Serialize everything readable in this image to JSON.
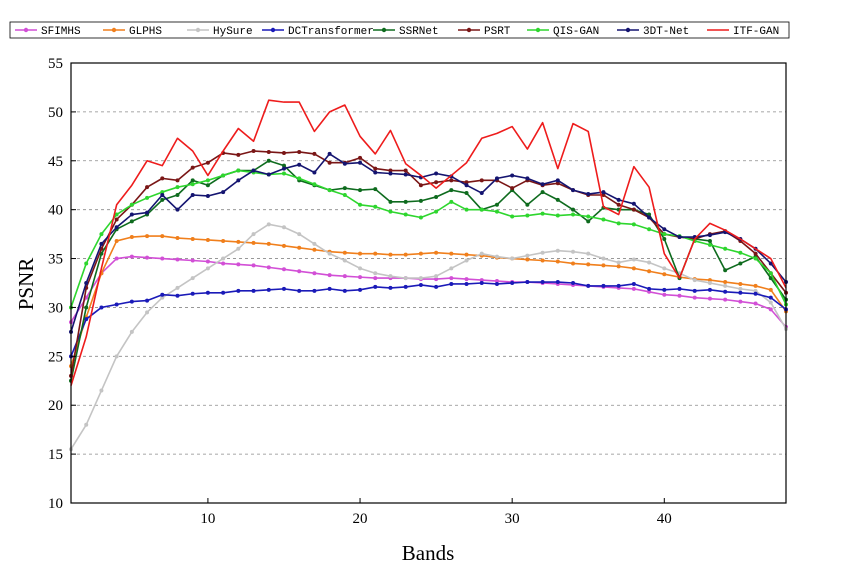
{
  "chart_data": {
    "type": "line",
    "title": "",
    "xlabel": "Bands",
    "ylabel": "PSNR",
    "xlim": [
      1,
      48
    ],
    "ylim": [
      10,
      55
    ],
    "xticks": [
      10,
      20,
      30,
      40
    ],
    "yticks": [
      10,
      15,
      20,
      25,
      30,
      35,
      40,
      45,
      50,
      55
    ],
    "grid": "horizontal-dashed",
    "legend": "top",
    "x": [
      1,
      2,
      3,
      4,
      5,
      6,
      7,
      8,
      9,
      10,
      11,
      12,
      13,
      14,
      15,
      16,
      17,
      18,
      19,
      20,
      21,
      22,
      23,
      24,
      25,
      26,
      27,
      28,
      29,
      30,
      31,
      32,
      33,
      34,
      35,
      36,
      37,
      38,
      39,
      40,
      41,
      42,
      43,
      44,
      45,
      46,
      47,
      48
    ],
    "series": [
      {
        "name": "SFIMHS",
        "color": "#d24fd6",
        "marker": "circle",
        "values": [
          28.5,
          31.0,
          33.5,
          35.0,
          35.2,
          35.1,
          35.0,
          34.9,
          34.8,
          34.7,
          34.5,
          34.4,
          34.3,
          34.1,
          33.9,
          33.7,
          33.5,
          33.3,
          33.2,
          33.1,
          33.0,
          33.0,
          33.0,
          32.9,
          32.9,
          33.0,
          32.9,
          32.8,
          32.7,
          32.6,
          32.6,
          32.5,
          32.4,
          32.3,
          32.2,
          32.1,
          32.0,
          31.9,
          31.6,
          31.3,
          31.2,
          31.0,
          30.9,
          30.8,
          30.6,
          30.4,
          29.8,
          28.0
        ]
      },
      {
        "name": "GLPHS",
        "color": "#f07f1c",
        "marker": "circle",
        "values": [
          24.0,
          29.0,
          33.5,
          36.8,
          37.2,
          37.3,
          37.3,
          37.1,
          37.0,
          36.9,
          36.8,
          36.7,
          36.6,
          36.5,
          36.3,
          36.1,
          35.9,
          35.7,
          35.6,
          35.5,
          35.5,
          35.4,
          35.4,
          35.5,
          35.6,
          35.5,
          35.4,
          35.3,
          35.1,
          35.0,
          34.9,
          34.8,
          34.7,
          34.5,
          34.4,
          34.3,
          34.2,
          34.0,
          33.7,
          33.4,
          33.1,
          32.9,
          32.8,
          32.6,
          32.4,
          32.2,
          31.8,
          29.6
        ]
      },
      {
        "name": "HySure",
        "color": "#c4c4c4",
        "marker": "circle",
        "values": [
          15.5,
          18.0,
          21.5,
          25.0,
          27.5,
          29.5,
          31.0,
          32.0,
          33.0,
          34.0,
          35.0,
          36.0,
          37.5,
          38.5,
          38.2,
          37.5,
          36.5,
          35.5,
          34.8,
          34.0,
          33.5,
          33.2,
          33.0,
          33.0,
          33.2,
          34.0,
          34.8,
          35.5,
          35.2,
          35.0,
          35.3,
          35.6,
          35.8,
          35.7,
          35.5,
          35.0,
          34.6,
          34.9,
          34.6,
          34.0,
          33.5,
          32.8,
          32.5,
          32.2,
          31.9,
          31.7,
          30.5,
          27.8
        ]
      },
      {
        "name": "DCTransformer",
        "color": "#1a1ab8",
        "marker": "circle",
        "values": [
          25.0,
          28.8,
          30.0,
          30.3,
          30.6,
          30.7,
          31.3,
          31.2,
          31.4,
          31.5,
          31.5,
          31.7,
          31.7,
          31.8,
          31.9,
          31.7,
          31.7,
          31.9,
          31.7,
          31.8,
          32.1,
          32.0,
          32.1,
          32.3,
          32.1,
          32.4,
          32.4,
          32.5,
          32.4,
          32.5,
          32.6,
          32.6,
          32.6,
          32.5,
          32.2,
          32.2,
          32.2,
          32.4,
          31.9,
          31.8,
          31.9,
          31.7,
          31.8,
          31.6,
          31.5,
          31.4,
          31.0,
          29.8
        ]
      },
      {
        "name": "SSRNet",
        "color": "#0e6b1e",
        "marker": "circle",
        "values": [
          22.5,
          30.0,
          35.5,
          38.0,
          38.8,
          39.5,
          41.0,
          41.5,
          43.0,
          42.5,
          43.5,
          44.0,
          44.0,
          45.0,
          44.5,
          43.0,
          42.5,
          42.0,
          42.2,
          42.0,
          42.1,
          40.8,
          40.8,
          40.9,
          41.3,
          42.0,
          41.7,
          40.0,
          40.5,
          42.0,
          40.5,
          41.8,
          41.0,
          40.0,
          38.8,
          40.2,
          40.0,
          40.0,
          39.5,
          37.0,
          33.0,
          37.0,
          36.8,
          33.8,
          34.5,
          35.2,
          33.0,
          30.8
        ]
      },
      {
        "name": "PSRT",
        "color": "#7a1616",
        "marker": "circle",
        "values": [
          23.0,
          32.0,
          36.0,
          39.0,
          40.5,
          42.3,
          43.2,
          43.0,
          44.3,
          44.8,
          45.8,
          45.6,
          46.0,
          45.9,
          45.8,
          45.9,
          45.7,
          44.8,
          44.8,
          45.3,
          44.2,
          44.0,
          44.0,
          42.5,
          42.8,
          43.0,
          42.8,
          43.0,
          43.0,
          42.2,
          43.0,
          42.5,
          42.7,
          42.0,
          41.5,
          41.5,
          40.5,
          40.0,
          39.2,
          37.5,
          37.2,
          37.0,
          37.5,
          37.8,
          36.8,
          35.5,
          33.5,
          31.5
        ]
      },
      {
        "name": "QIS-GAN",
        "color": "#2ed62e",
        "marker": "circle",
        "values": [
          30.0,
          34.5,
          37.5,
          39.5,
          40.5,
          41.2,
          41.8,
          42.3,
          42.6,
          43.0,
          43.5,
          44.0,
          43.8,
          43.6,
          43.7,
          43.2,
          42.6,
          42.0,
          41.5,
          40.5,
          40.3,
          39.8,
          39.5,
          39.2,
          39.8,
          40.8,
          40.0,
          40.0,
          39.8,
          39.3,
          39.4,
          39.6,
          39.4,
          39.5,
          39.3,
          39.0,
          38.6,
          38.5,
          38.0,
          37.5,
          37.3,
          36.8,
          36.4,
          36.0,
          35.6,
          35.0,
          33.5,
          30.3
        ]
      },
      {
        "name": "3DT-Net",
        "color": "#141470",
        "marker": "circle",
        "values": [
          27.5,
          32.5,
          36.5,
          38.2,
          39.5,
          39.7,
          41.5,
          40.0,
          41.5,
          41.4,
          41.8,
          43.0,
          44.0,
          43.6,
          44.2,
          44.6,
          43.8,
          45.7,
          44.7,
          44.8,
          43.8,
          43.7,
          43.6,
          43.3,
          43.7,
          43.4,
          42.5,
          41.7,
          43.2,
          43.5,
          43.2,
          42.6,
          43.0,
          42.0,
          41.6,
          41.8,
          41.0,
          40.6,
          39.2,
          38.0,
          37.2,
          37.2,
          37.4,
          37.7,
          37.0,
          36.0,
          34.5,
          32.6
        ]
      },
      {
        "name": "ITF-GAN",
        "color": "#ee1c1c",
        "marker": "none",
        "values": [
          22.0,
          27.0,
          34.0,
          40.5,
          42.5,
          45.0,
          44.5,
          47.3,
          46.0,
          43.5,
          46.0,
          48.3,
          47.0,
          51.2,
          51.0,
          51.0,
          48.0,
          50.0,
          50.7,
          47.5,
          45.7,
          48.1,
          44.7,
          43.5,
          42.2,
          43.5,
          44.8,
          47.3,
          47.8,
          48.5,
          46.2,
          48.9,
          44.2,
          48.8,
          48.0,
          40.3,
          39.5,
          44.4,
          42.3,
          35.5,
          33.0,
          37.0,
          38.6,
          37.9,
          37.0,
          36.0,
          35.0,
          32.0
        ]
      }
    ]
  }
}
